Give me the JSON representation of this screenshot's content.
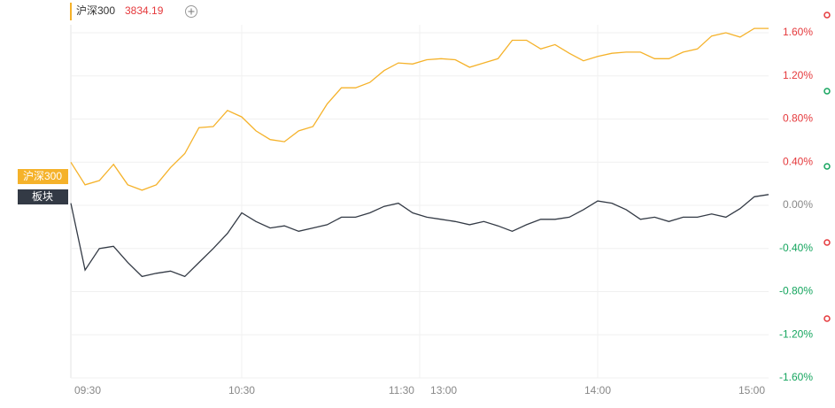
{
  "chart_data": {
    "type": "line",
    "legend_name": "沪深300",
    "legend_value": 3834.19,
    "categories": [
      "09:30",
      null,
      null,
      null,
      null,
      null,
      null,
      null,
      null,
      null,
      null,
      null,
      "10:30",
      null,
      null,
      null,
      null,
      null,
      null,
      null,
      null,
      null,
      null,
      null,
      "11:30",
      "13:00",
      null,
      null,
      null,
      null,
      null,
      null,
      null,
      null,
      null,
      null,
      null,
      "14:00",
      null,
      null,
      null,
      null,
      null,
      null,
      null,
      null,
      null,
      null,
      null,
      "15:00"
    ],
    "series": [
      {
        "name": "沪深300",
        "color": "#f5b22a",
        "values": [
          0.4,
          0.19,
          0.23,
          0.38,
          0.19,
          0.14,
          0.19,
          0.35,
          0.48,
          0.72,
          0.73,
          0.88,
          0.82,
          0.69,
          0.61,
          0.59,
          0.69,
          0.73,
          0.94,
          1.09,
          1.09,
          1.14,
          1.25,
          1.32,
          1.31,
          1.35,
          1.36,
          1.35,
          1.28,
          1.32,
          1.36,
          1.53,
          1.53,
          1.45,
          1.49,
          1.41,
          1.34,
          1.38,
          1.41,
          1.42,
          1.42,
          1.36,
          1.36,
          1.42,
          1.45,
          1.57,
          1.6,
          1.56,
          1.64,
          1.64
        ]
      },
      {
        "name": "板块",
        "color": "#333a45",
        "values": [
          0.02,
          -0.6,
          -0.4,
          -0.38,
          -0.53,
          -0.66,
          -0.63,
          -0.61,
          -0.66,
          -0.53,
          -0.4,
          -0.26,
          -0.07,
          -0.15,
          -0.21,
          -0.19,
          -0.24,
          -0.21,
          -0.18,
          -0.11,
          -0.11,
          -0.07,
          -0.01,
          0.02,
          -0.07,
          -0.11,
          -0.13,
          -0.15,
          -0.18,
          -0.15,
          -0.19,
          -0.24,
          -0.18,
          -0.13,
          -0.13,
          -0.11,
          -0.04,
          0.04,
          0.02,
          -0.04,
          -0.13,
          -0.11,
          -0.15,
          -0.11,
          -0.11,
          -0.08,
          -0.11,
          -0.03,
          0.08,
          0.1
        ]
      }
    ],
    "ylim": [
      -1.6,
      1.6
    ],
    "yticks": [
      {
        "value": 1.6,
        "label": "1.60%"
      },
      {
        "value": 1.2,
        "label": "1.20%"
      },
      {
        "value": 0.8,
        "label": "0.80%"
      },
      {
        "value": 0.4,
        "label": "0.40%"
      },
      {
        "value": 0,
        "label": "0.00%"
      },
      {
        "value": -0.4,
        "label": "-0.40%"
      },
      {
        "value": -0.8,
        "label": "-0.80%"
      },
      {
        "value": -1.2,
        "label": "-1.20%"
      },
      {
        "value": -1.6,
        "label": "-1.60%"
      }
    ],
    "grid": true,
    "up_color": "#e5393c",
    "down_color": "#15a55e",
    "flat_color": "#888888",
    "value_color": "#e5393c"
  }
}
